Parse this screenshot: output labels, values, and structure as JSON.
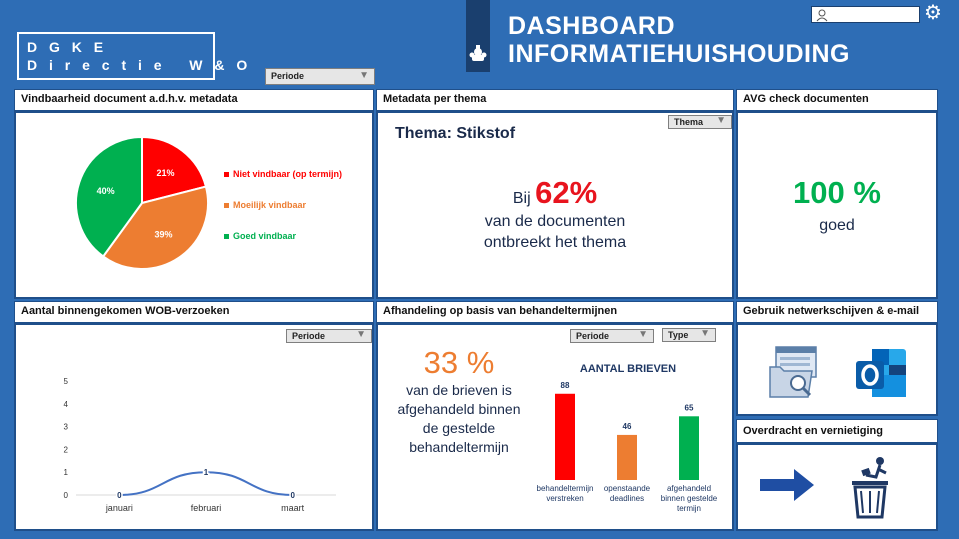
{
  "brand": {
    "line1": "D G K E",
    "line2": "D i r e c t i e   W & O"
  },
  "title": {
    "line1": "DASHBOARD",
    "line2": "INFORMATIEHUISHOUDING"
  },
  "top_slicer": {
    "label": "Periode"
  },
  "panels": {
    "vindbaarheid": {
      "header": "Vindbaarheid document a.d.h.v. metadata",
      "legend": [
        {
          "label": "Niet vindbaar (op termijn)",
          "color": "#ff0000"
        },
        {
          "label": "Moeilijk vindbaar",
          "color": "#ed7d31"
        },
        {
          "label": "Goed vindbaar",
          "color": "#00b050"
        }
      ]
    },
    "metadata": {
      "header": "Metadata per thema",
      "slicer": "Thema",
      "theme_title": "Thema: Stikstof",
      "prefix": "Bij",
      "value": "62%",
      "line2": "van de documenten",
      "line3": "ontbreekt het thema"
    },
    "avg": {
      "header": "AVG check documenten",
      "value": "100 %",
      "label": "goed"
    },
    "wob": {
      "header": "Aantal binnengekomen WOB-verzoeken",
      "slicer": "Periode"
    },
    "afhandeling": {
      "header": "Afhandeling op basis van behandeltermijnen",
      "slicer_periode": "Periode",
      "slicer_type": "Type",
      "value": "33 %",
      "lines": [
        "van de brieven is",
        "afgehandeld binnen",
        "de gestelde",
        "behandeltermijn"
      ]
    },
    "netwerk": {
      "header": "Gebruik netwerkschijven & e-mail"
    },
    "overdracht": {
      "header": "Overdracht en vernietiging"
    }
  },
  "chart_data": [
    {
      "type": "pie",
      "slices": [
        {
          "label": "Niet vindbaar (op termijn)",
          "value": 21,
          "display": "21%",
          "color": "#ff0000"
        },
        {
          "label": "Moeilijk vindbaar",
          "value": 39,
          "display": "39%",
          "color": "#ed7d31"
        },
        {
          "label": "Goed vindbaar",
          "value": 40,
          "display": "40%",
          "color": "#00b050"
        }
      ]
    },
    {
      "type": "line",
      "categories": [
        "januari",
        "februari",
        "maart"
      ],
      "values": [
        0,
        1,
        0
      ],
      "ylim": [
        0,
        5
      ],
      "yticks": [
        "0",
        "1",
        "2",
        "3",
        "4",
        "5"
      ],
      "color": "#4472c4"
    },
    {
      "type": "bar",
      "title": "AANTAL BRIEVEN",
      "categories": [
        [
          "behandeltermijn",
          "verstreken"
        ],
        [
          "openstaande",
          "deadlines"
        ],
        [
          "afgehandeld",
          "binnen gestelde",
          "termijn"
        ]
      ],
      "values": [
        88,
        46,
        65
      ],
      "colors": [
        "#ff0000",
        "#ed7d31",
        "#00b050"
      ],
      "ylim": [
        0,
        100
      ]
    }
  ]
}
